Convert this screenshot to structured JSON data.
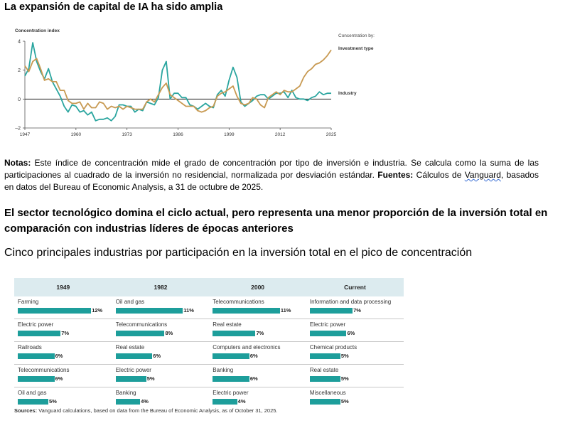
{
  "title_top": "La expansión de capital de IA ha sido amplia",
  "chart_data": {
    "type": "line",
    "ylabel": "Concentration index",
    "legend_title": "Concentration by:",
    "ylim": [
      -2,
      4
    ],
    "yticks": [
      -2,
      0,
      2,
      4
    ],
    "xlim": [
      1947,
      2025
    ],
    "xticks": [
      1947,
      1960,
      1973,
      1986,
      1999,
      2012,
      2025
    ],
    "series": [
      {
        "name": "Industry",
        "color": "#2aa59f",
        "x": [
          1947,
          1948,
          1949,
          1950,
          1951,
          1952,
          1953,
          1954,
          1955,
          1956,
          1957,
          1958,
          1959,
          1960,
          1961,
          1962,
          1963,
          1964,
          1965,
          1966,
          1967,
          1968,
          1969,
          1970,
          1971,
          1972,
          1973,
          1974,
          1975,
          1976,
          1977,
          1978,
          1979,
          1980,
          1981,
          1982,
          1983,
          1984,
          1985,
          1986,
          1987,
          1988,
          1989,
          1990,
          1991,
          1992,
          1993,
          1994,
          1995,
          1996,
          1997,
          1998,
          1999,
          2000,
          2001,
          2002,
          2003,
          2004,
          2005,
          2006,
          2007,
          2008,
          2009,
          2010,
          2011,
          2012,
          2013,
          2014,
          2015,
          2016,
          2017,
          2018,
          2019,
          2020,
          2021,
          2022,
          2023,
          2024,
          2025
        ],
        "y": [
          1.6,
          2.1,
          3.9,
          2.6,
          1.9,
          1.4,
          2.1,
          1.2,
          0.7,
          0.2,
          -0.5,
          -0.9,
          -0.4,
          -0.5,
          -0.9,
          -0.8,
          -1.1,
          -0.9,
          -1.5,
          -1.4,
          -1.4,
          -1.3,
          -1.5,
          -1.2,
          -0.4,
          -0.4,
          -0.5,
          -0.5,
          -0.9,
          -0.7,
          -0.8,
          -0.2,
          -0.3,
          -0.4,
          0.1,
          2.0,
          2.6,
          0.0,
          0.4,
          0.4,
          0.1,
          0.1,
          -0.4,
          -0.5,
          -0.7,
          -0.5,
          -0.3,
          -0.5,
          -0.6,
          0.3,
          0.6,
          0.2,
          1.3,
          2.2,
          1.5,
          -0.2,
          -0.5,
          -0.3,
          -0.1,
          0.2,
          0.3,
          0.3,
          0.0,
          0.2,
          0.4,
          0.4,
          0.5,
          0.1,
          0.6,
          0.1,
          0.0,
          0.0,
          -0.1,
          0.1,
          0.2,
          0.5,
          0.3,
          0.4,
          0.4
        ]
      },
      {
        "name": "Investment type",
        "color": "#c89a52",
        "x": [
          1947,
          1948,
          1949,
          1950,
          1951,
          1952,
          1953,
          1954,
          1955,
          1956,
          1957,
          1958,
          1959,
          1960,
          1961,
          1962,
          1963,
          1964,
          1965,
          1966,
          1967,
          1968,
          1969,
          1970,
          1971,
          1972,
          1973,
          1974,
          1975,
          1976,
          1977,
          1978,
          1979,
          1980,
          1981,
          1982,
          1983,
          1984,
          1985,
          1986,
          1987,
          1988,
          1989,
          1990,
          1991,
          1992,
          1993,
          1994,
          1995,
          1996,
          1997,
          1998,
          1999,
          2000,
          2001,
          2002,
          2003,
          2004,
          2005,
          2006,
          2007,
          2008,
          2009,
          2010,
          2011,
          2012,
          2013,
          2014,
          2015,
          2016,
          2017,
          2018,
          2019,
          2020,
          2021,
          2022,
          2023,
          2024,
          2025
        ],
        "y": [
          2.3,
          1.9,
          2.6,
          2.8,
          2.1,
          1.3,
          1.4,
          1.2,
          1.2,
          0.6,
          0.6,
          -0.1,
          -0.3,
          -0.3,
          -0.2,
          -0.7,
          -0.3,
          -0.6,
          -0.6,
          -0.2,
          -0.3,
          -0.7,
          -0.5,
          -0.6,
          -0.5,
          -0.7,
          -0.5,
          -0.6,
          -0.7,
          -0.7,
          -0.7,
          -0.2,
          0.0,
          -0.2,
          0.3,
          0.8,
          1.1,
          0.3,
          0.1,
          -0.1,
          -0.3,
          -0.5,
          -0.5,
          -0.5,
          -0.8,
          -0.9,
          -0.8,
          -0.6,
          -0.5,
          0.2,
          0.4,
          0.5,
          0.7,
          0.9,
          0.2,
          -0.3,
          -0.4,
          -0.3,
          0.1,
          0.0,
          -0.4,
          -0.6,
          0.1,
          0.3,
          0.5,
          0.3,
          0.6,
          0.5,
          0.5,
          0.7,
          0.9,
          1.5,
          1.9,
          2.1,
          2.4,
          2.5,
          2.7,
          3.0,
          3.4
        ]
      }
    ]
  },
  "notes": {
    "label": "Notas:",
    "text1": " Este índice de concentración mide el grado de concentración por tipo de inversión e industria. Se calcula como la suma de las participaciones al cuadrado de la inversión no residencial, normalizada por desviación estándar. ",
    "sources_label": "Fuentes:",
    "text2a": " Cálculos de ",
    "vanguard": "Vanguard",
    "text2b": ", basados en datos del Bureau of Economic Analysis, a 31 de octubre de 2025."
  },
  "title2": "El sector tecnológico domina el ciclo actual, pero representa una menor proporción de la inversión total en comparación con industrias líderes de épocas anteriores",
  "subtitle": "Cinco principales industrias por participación en la inversión total en el pico de concentración",
  "table": {
    "headers": [
      "1949",
      "1982",
      "2000",
      "Current"
    ],
    "rows": [
      [
        {
          "name": "Farming",
          "value": 12,
          "label": "12%"
        },
        {
          "name": "Oil and gas",
          "value": 11,
          "label": "11%"
        },
        {
          "name": "Telecommunications",
          "value": 11,
          "label": "11%"
        },
        {
          "name": "Information and data processing",
          "value": 7,
          "label": "7%"
        }
      ],
      [
        {
          "name": "Electric power",
          "value": 7,
          "label": "7%"
        },
        {
          "name": "Telecommunications",
          "value": 8,
          "label": "8%"
        },
        {
          "name": "Real estate",
          "value": 7,
          "label": "7%"
        },
        {
          "name": "Electric power",
          "value": 6,
          "label": "6%"
        }
      ],
      [
        {
          "name": "Railroads",
          "value": 6,
          "label": "6%"
        },
        {
          "name": "Real estate",
          "value": 6,
          "label": "6%"
        },
        {
          "name": "Computers and electronics",
          "value": 6,
          "label": "6%"
        },
        {
          "name": "Chemical products",
          "value": 5,
          "label": "5%"
        }
      ],
      [
        {
          "name": "Telecommunications",
          "value": 6,
          "label": "6%"
        },
        {
          "name": "Electric power",
          "value": 5,
          "label": "5%"
        },
        {
          "name": "Banking",
          "value": 6,
          "label": "6%"
        },
        {
          "name": "Real estate",
          "value": 5,
          "label": "5%"
        }
      ],
      [
        {
          "name": "Oil and gas",
          "value": 5,
          "label": "5%"
        },
        {
          "name": "Banking",
          "value": 4,
          "label": "4%"
        },
        {
          "name": "Electric power",
          "value": 4,
          "label": "4%"
        },
        {
          "name": "Miscellaneous",
          "value": 5,
          "label": "5%"
        }
      ]
    ]
  },
  "table_source": {
    "label": "Sources:",
    "text": " Vanguard calculations, based on data from the Bureau of Economic Analysis, as of October 31, 2025."
  }
}
